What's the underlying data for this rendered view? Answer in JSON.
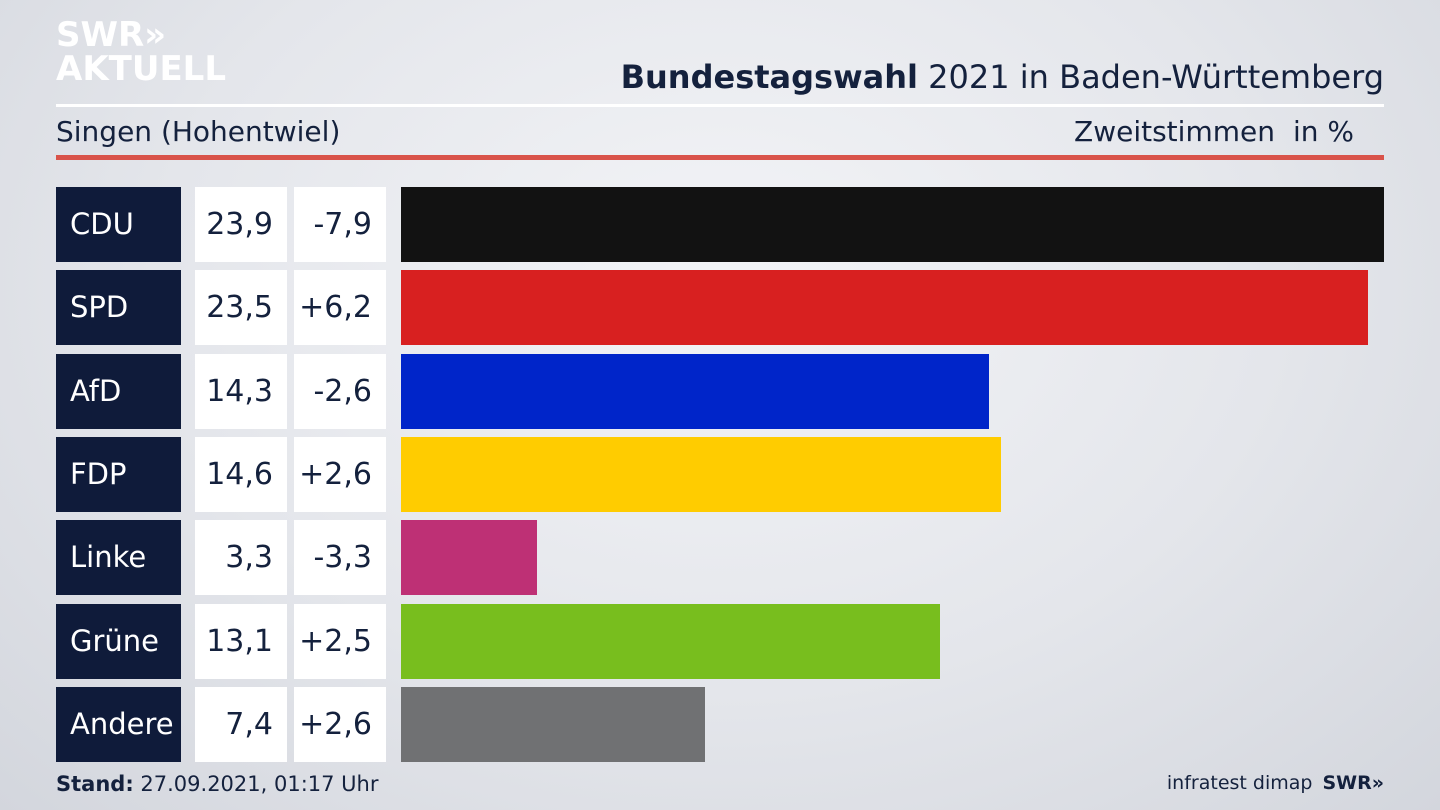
{
  "logo": {
    "line1": "SWR»",
    "line2": "AKTUELL"
  },
  "header": {
    "title_bold": "Bundestagswahl",
    "title_rest": " 2021 in Baden-Württemberg",
    "location": "Singen (Hohentwiel)",
    "measure": "Zweitstimmen",
    "unit": "in %"
  },
  "footer": {
    "stand_label": "Stand:",
    "stand_value": " 27.09.2021, 01:17 Uhr",
    "source": "infratest dimap",
    "brand": "SWR»"
  },
  "colors": {
    "label_box": "#0f1b3a",
    "rule_red": "#d9534a"
  },
  "chart_data": {
    "type": "bar",
    "orientation": "horizontal",
    "categories": [
      "CDU",
      "SPD",
      "AfD",
      "FDP",
      "Linke",
      "Grüne",
      "Andere"
    ],
    "values": [
      23.9,
      23.5,
      14.3,
      14.6,
      3.3,
      13.1,
      7.4
    ],
    "value_labels": [
      "23,9",
      "23,5",
      "14,3",
      "14,6",
      "3,3",
      "13,1",
      "7,4"
    ],
    "changes": [
      -7.9,
      6.2,
      -2.6,
      2.6,
      -3.3,
      2.5,
      2.6
    ],
    "change_labels": [
      "-7,9",
      "+6,2",
      "-2,6",
      "+2,6",
      "-3,3",
      "+2,5",
      "+2,6"
    ],
    "bar_colors": [
      "#121212",
      "#d82020",
      "#0025c9",
      "#ffcc00",
      "#be3075",
      "#78be1e",
      "#707173"
    ],
    "xlim": [
      0,
      23.9
    ],
    "grid": false,
    "legend": "none"
  }
}
